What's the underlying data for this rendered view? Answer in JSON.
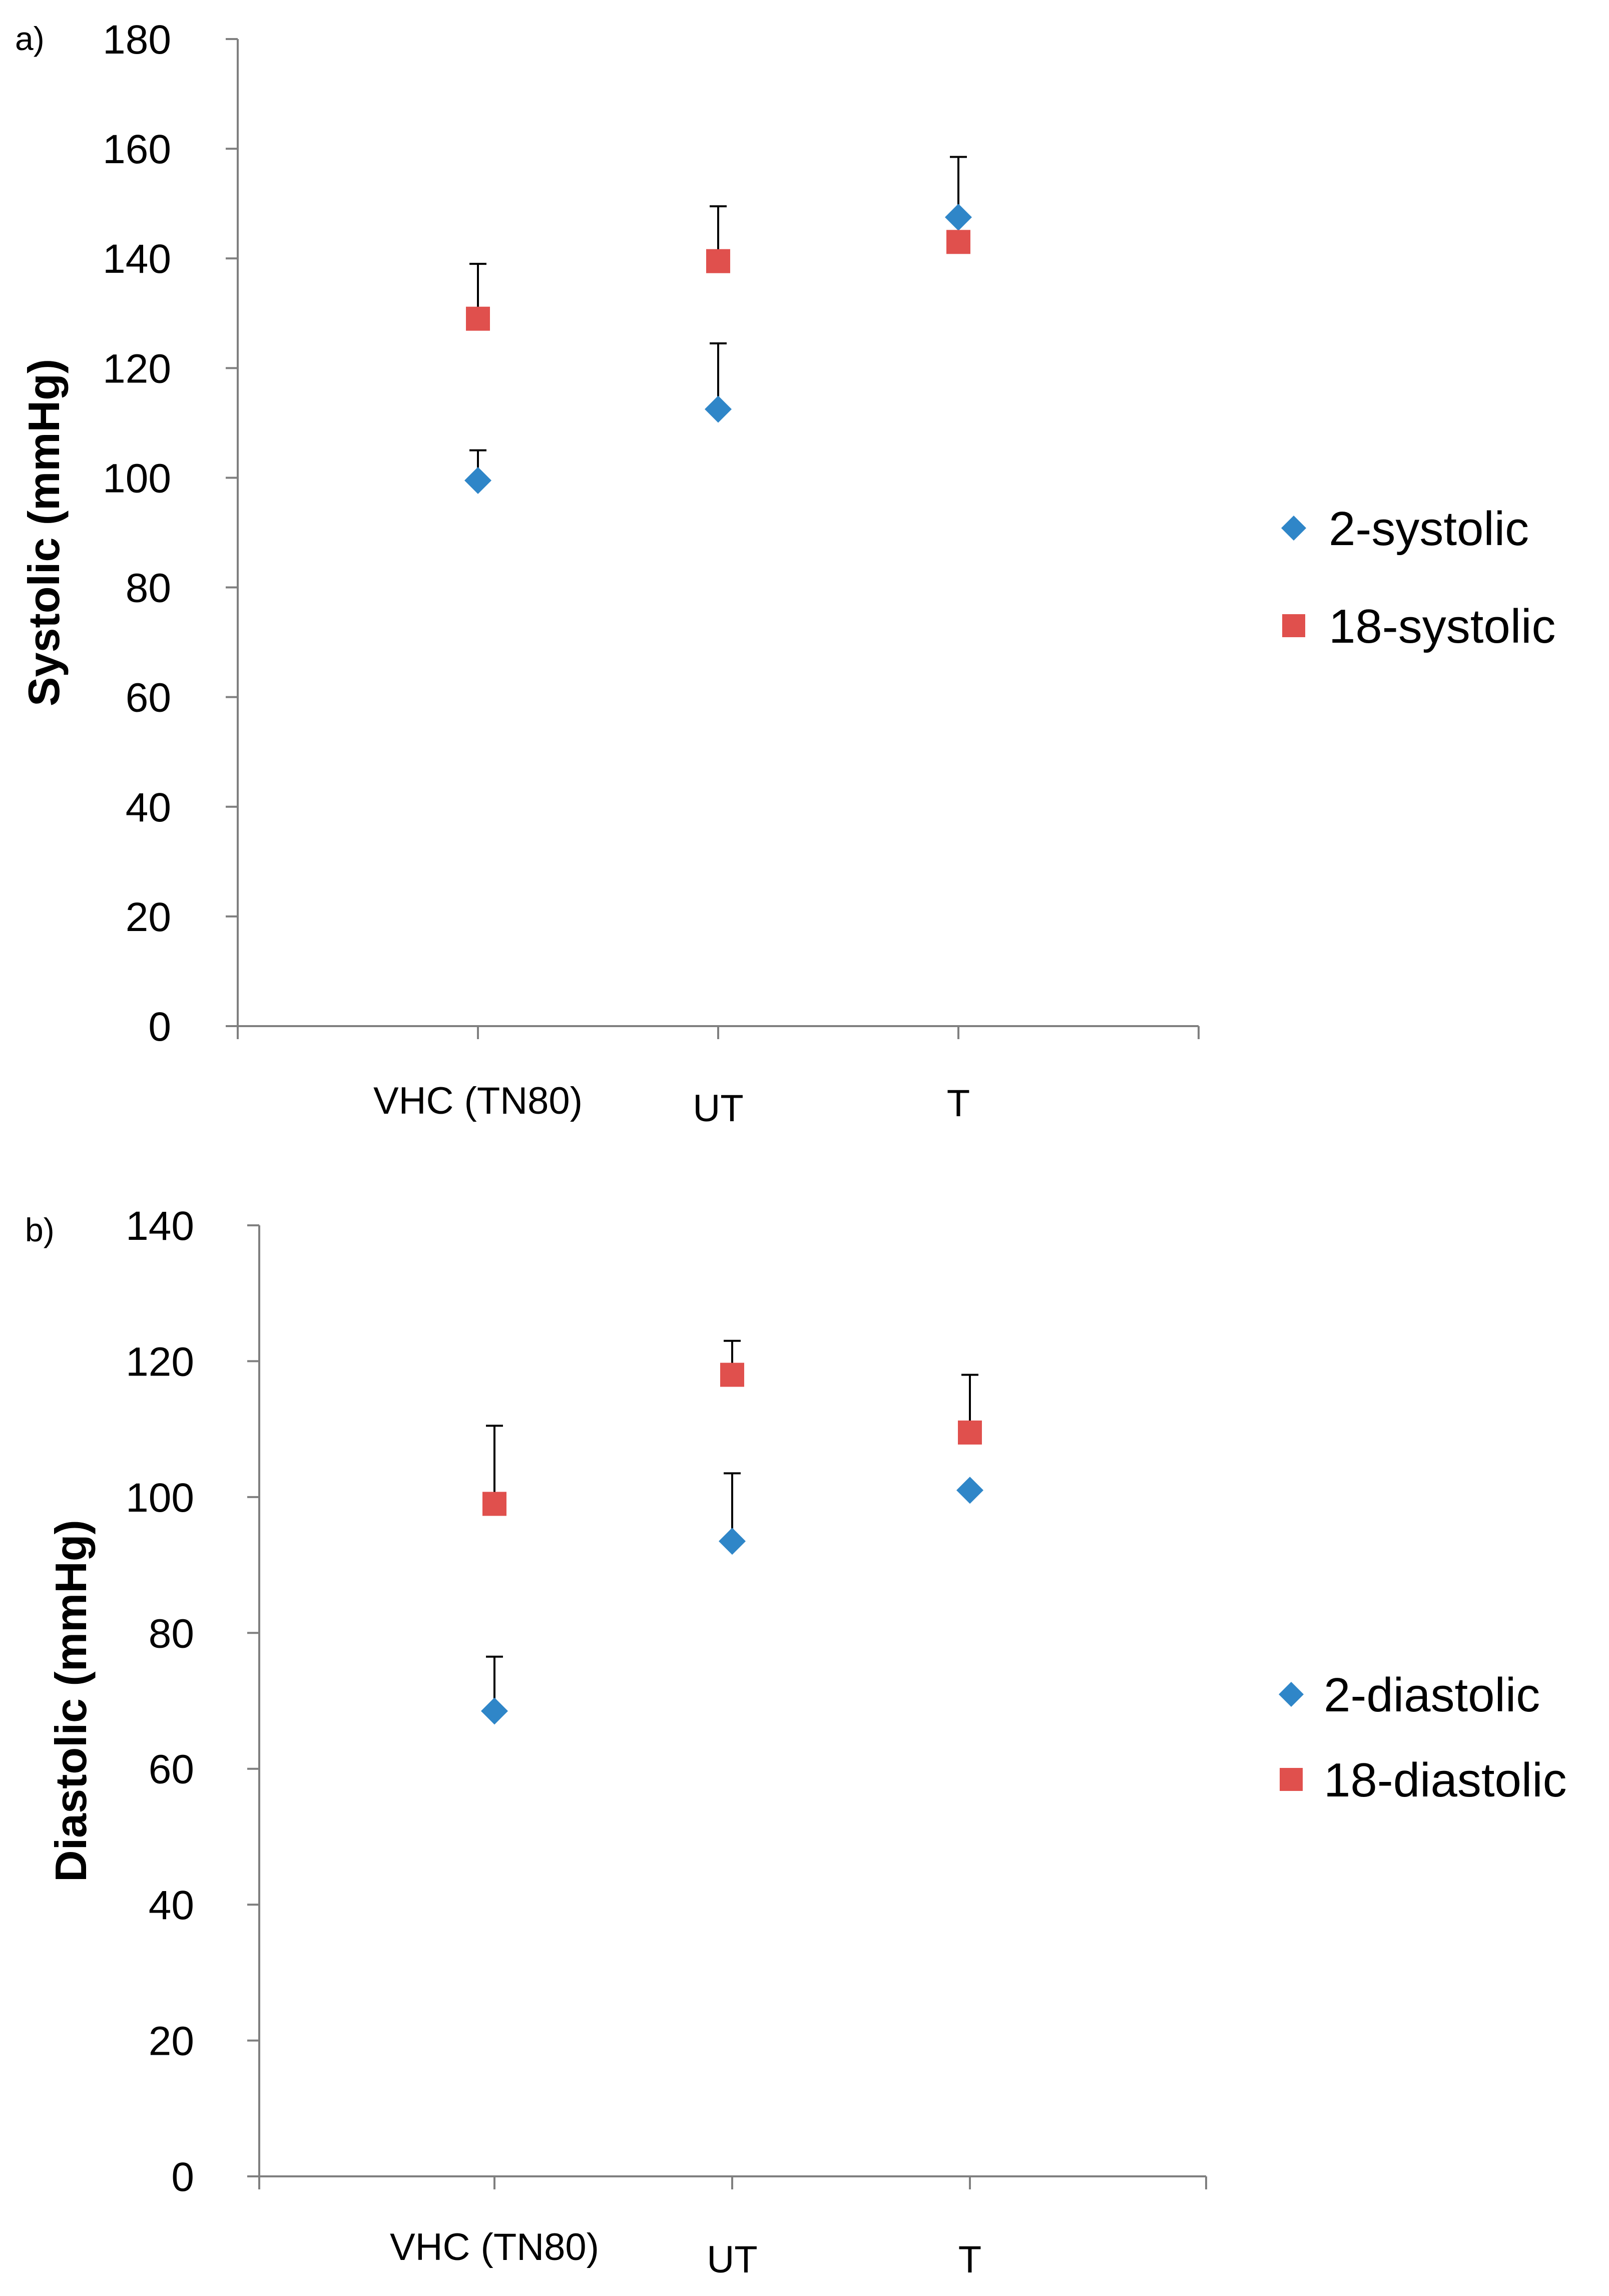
{
  "chart_data": [
    {
      "type": "scatter",
      "panel_label": "a)",
      "title": "",
      "xlabel": "",
      "ylabel": "Systolic (mmHg)",
      "categories": [
        "VHC (TN80)",
        "UT",
        "T"
      ],
      "ylim": [
        0,
        180
      ],
      "yticks": [
        0,
        20,
        40,
        60,
        80,
        100,
        120,
        140,
        160,
        180
      ],
      "grid": false,
      "legend_position": "right",
      "series": [
        {
          "name": "2-systolic",
          "marker": "diamond",
          "color": "#2f86c8",
          "values": [
            99.5,
            112.5,
            147.5
          ],
          "error_plus": [
            5.5,
            12,
            11
          ]
        },
        {
          "name": "18-systolic",
          "marker": "square",
          "color": "#e0504d",
          "values": [
            129,
            139.5,
            143
          ],
          "error_plus": [
            10,
            10,
            null
          ]
        }
      ]
    },
    {
      "type": "scatter",
      "panel_label": "b)",
      "title": "",
      "xlabel": "",
      "ylabel": "Diastolic (mmHg)",
      "categories": [
        "VHC (TN80)",
        "UT",
        "T"
      ],
      "ylim": [
        0,
        140
      ],
      "yticks": [
        0,
        20,
        40,
        60,
        80,
        100,
        120,
        140
      ],
      "grid": false,
      "legend_position": "right",
      "series": [
        {
          "name": "2-diastolic",
          "marker": "diamond",
          "color": "#2f86c8",
          "values": [
            68.5,
            93.5,
            101
          ],
          "error_plus": [
            8,
            10,
            null
          ]
        },
        {
          "name": "18-diastolic",
          "marker": "square",
          "color": "#e0504d",
          "values": [
            99,
            118,
            109.5
          ],
          "error_plus": [
            11.5,
            5,
            8.5
          ]
        }
      ]
    }
  ]
}
